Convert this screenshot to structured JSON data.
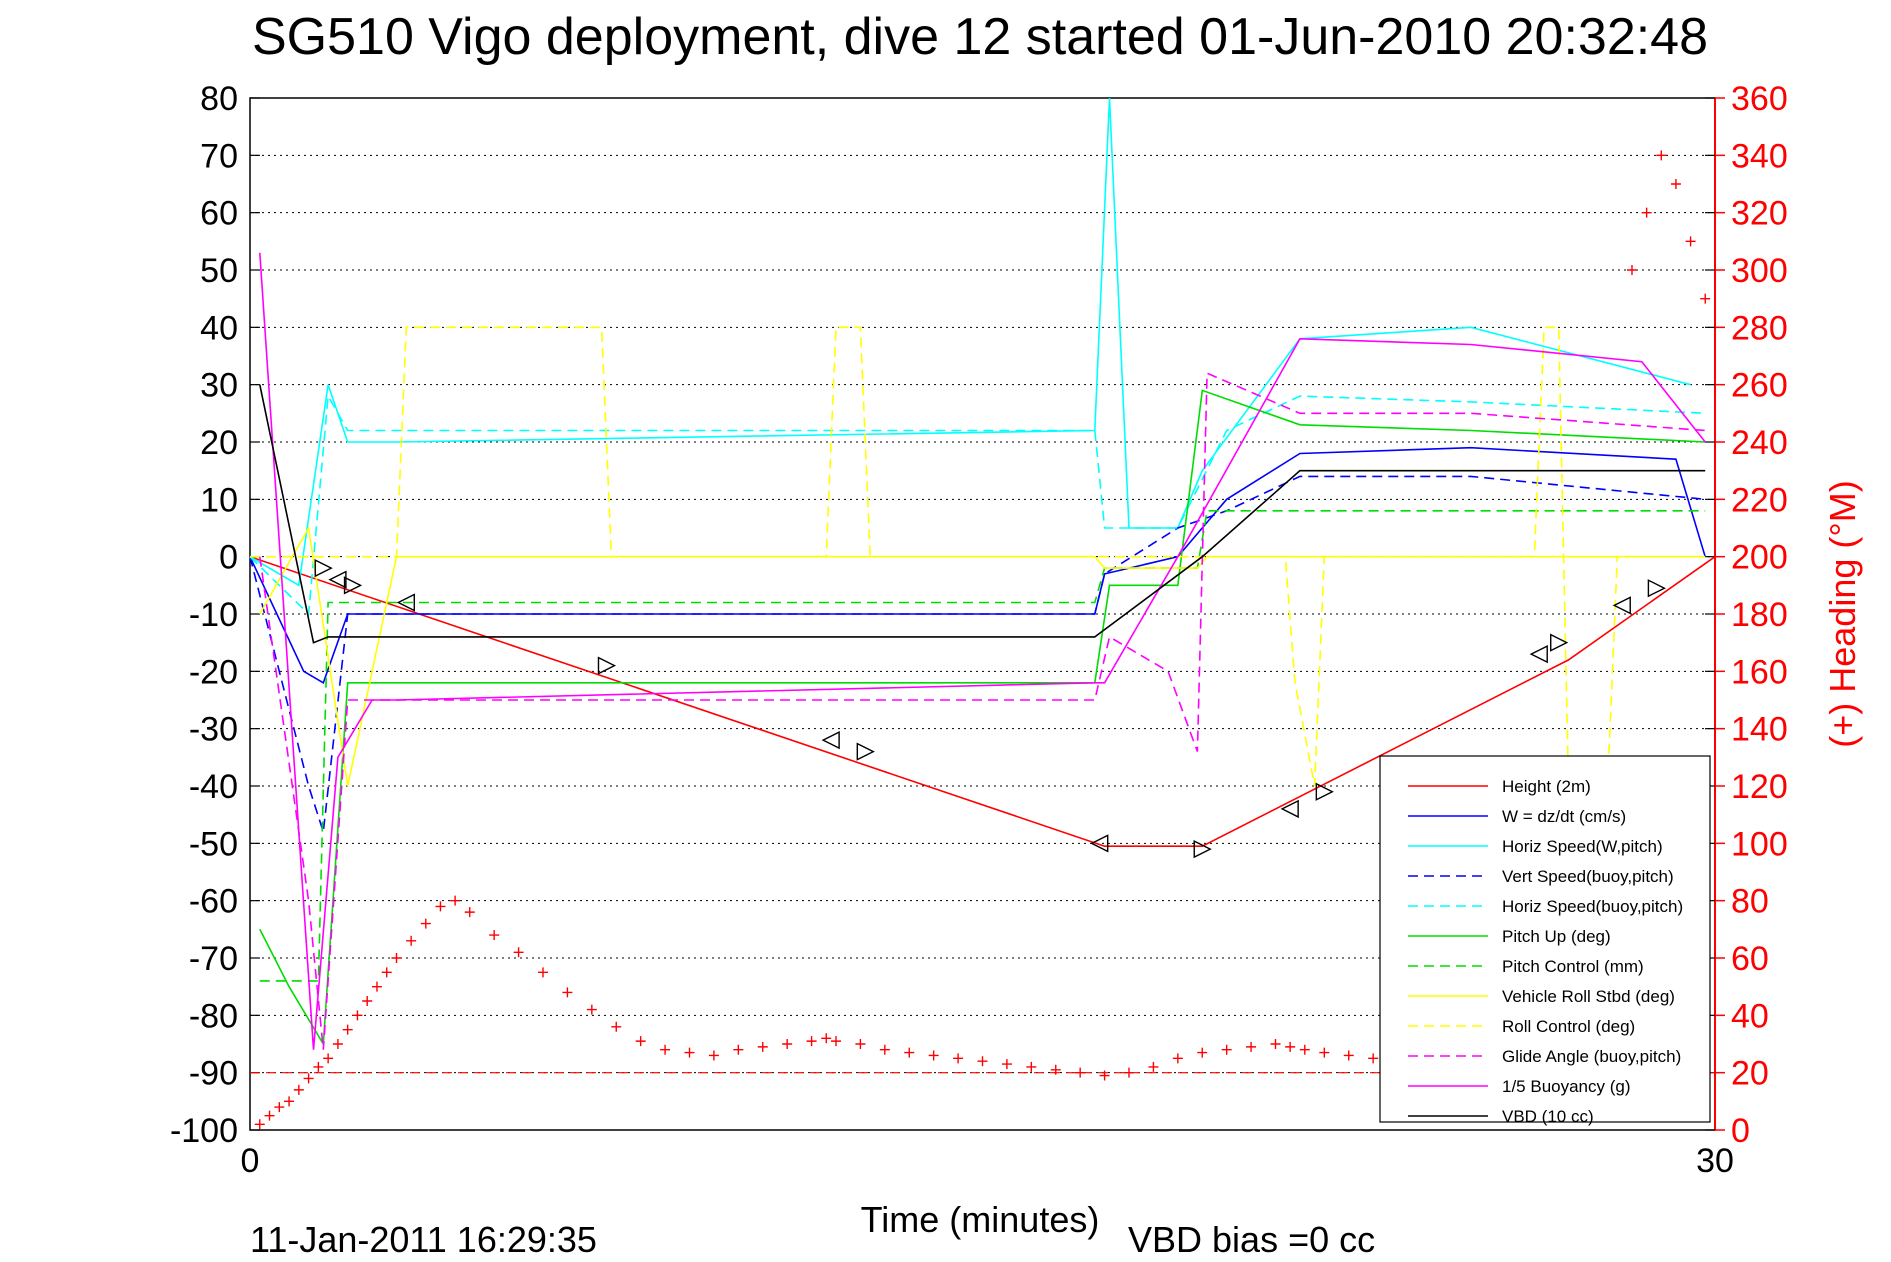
{
  "chart_data": {
    "type": "line",
    "title": "SG510 Vigo deployment, dive 12 started 01-Jun-2010 20:32:48",
    "xlabel": "Time (minutes)",
    "ylabel_right": "(+) Heading (°M)",
    "xlim": [
      0,
      30
    ],
    "ylim_left": [
      -100,
      80
    ],
    "ylim_right": [
      0,
      360
    ],
    "x_ticks": [
      "0",
      "30"
    ],
    "y_ticks_left": [
      "80",
      "70",
      "60",
      "50",
      "40",
      "30",
      "20",
      "10",
      "0",
      "-10",
      "-20",
      "-30",
      "-40",
      "-50",
      "-60",
      "-70",
      "-80",
      "-90",
      "-100"
    ],
    "y_ticks_right": [
      "360",
      "340",
      "320",
      "300",
      "280",
      "260",
      "240",
      "220",
      "200",
      "180",
      "160",
      "140",
      "120",
      "100",
      "80",
      "60",
      "40",
      "20",
      "0"
    ],
    "grid": "horizontal dotted",
    "legend_position": "bottom-right",
    "footer_date": "11-Jan-2011 16:29:35",
    "footer_vbd": "VBD bias =0 cc",
    "series": [
      {
        "name": "Height (2m)",
        "color": "#ff0000",
        "style": "solid",
        "x": [
          0,
          17.5,
          19.5,
          27,
          30
        ],
        "y": [
          0,
          -50.5,
          -50.5,
          -18,
          0
        ]
      },
      {
        "name": "W = dz/dt (cm/s)",
        "color": "#0000ff",
        "style": "solid",
        "x": [
          0,
          1.1,
          1.5,
          2,
          3,
          17.3,
          17.5,
          19,
          20,
          21.5,
          25,
          29.2,
          29.8
        ],
        "y": [
          0,
          -20,
          -22,
          -10,
          -10,
          -10,
          -3,
          0,
          10,
          18,
          19,
          17,
          0
        ]
      },
      {
        "name": "Horiz Speed(W,pitch)",
        "color": "#00ffff",
        "style": "solid",
        "x": [
          0,
          1,
          1.6,
          2,
          3,
          17.3,
          17.6,
          18,
          19,
          19.5,
          21.5,
          25,
          29.5
        ],
        "y": [
          0,
          -5,
          30,
          20,
          20,
          22,
          80,
          5,
          5,
          15,
          38,
          40,
          30
        ]
      },
      {
        "name": "Vert Speed(buoy,pitch)",
        "color": "#0000ff",
        "style": "dashed",
        "x": [
          0,
          1.2,
          1.5,
          2,
          3,
          17.3,
          17.5,
          19,
          20,
          21.5,
          25,
          29.8
        ],
        "y": [
          0,
          -40,
          -48,
          -10,
          -10,
          -10,
          -3,
          5,
          8,
          14,
          14,
          10
        ]
      },
      {
        "name": "Horiz Speed(buoy,pitch)",
        "color": "#00ffff",
        "style": "dashed",
        "x": [
          0,
          1.2,
          1.6,
          2,
          3,
          17.3,
          17.5,
          19,
          20,
          21.5,
          25,
          29.8
        ],
        "y": [
          0,
          -10,
          28,
          22,
          22,
          22,
          5,
          5,
          22,
          28,
          27,
          25
        ]
      },
      {
        "name": "Pitch Up (deg)",
        "color": "#00dd00",
        "style": "solid",
        "x": [
          0.2,
          0.8,
          1.5,
          2,
          3,
          17.3,
          17.6,
          19,
          19.5,
          21.5,
          25,
          29.8
        ],
        "y": [
          -65,
          -75,
          -85,
          -22,
          -22,
          -22,
          -5,
          -5,
          29,
          23,
          22,
          20
        ]
      },
      {
        "name": "Pitch Control (mm)",
        "color": "#00dd00",
        "style": "dashed",
        "x": [
          0.2,
          1.4,
          1.6,
          2,
          3,
          17.3,
          17.5,
          19.4,
          19.6,
          29.8
        ],
        "y": [
          -74,
          -74,
          -8,
          -8,
          -8,
          -8,
          -2,
          -2,
          8,
          8
        ]
      },
      {
        "name": "Vehicle Roll Stbd (deg)",
        "color": "#ffff00",
        "style": "solid",
        "x": [
          0.2,
          1.2,
          2,
          3,
          17.3,
          17.5,
          19.4,
          19.6,
          29.8
        ],
        "y": [
          -10,
          5,
          -40,
          0,
          0,
          -2,
          -2,
          0,
          0
        ]
      },
      {
        "name": "Roll Control (deg)",
        "color": "#ffff00",
        "style": "dashed",
        "x": [
          0,
          3,
          3.2,
          7.2,
          7.4,
          11.8,
          12,
          12.5,
          12.7,
          21.2,
          21.4,
          21.8,
          22,
          26.3,
          26.5,
          26.8,
          27,
          27.8,
          28,
          29.8
        ],
        "y": [
          0,
          0,
          40,
          40,
          0,
          0,
          40,
          40,
          0,
          0,
          -22,
          -40,
          0,
          0,
          40,
          40,
          -40,
          -40,
          0,
          0
        ]
      },
      {
        "name": "Glide Angle (buoy,pitch)",
        "color": "#ff00ff",
        "style": "dashed",
        "x": [
          0.2,
          1.2,
          1.5,
          2,
          3,
          17.3,
          17.6,
          18.8,
          19.4,
          19.6,
          21.5,
          25,
          29.8
        ],
        "y": [
          0,
          -60,
          -86,
          -25,
          -25,
          -25,
          -14,
          -20,
          -34,
          32,
          25,
          25,
          22
        ]
      },
      {
        "name": "1/5 Buoyancy (g)",
        "color": "#ff00ff",
        "style": "solid",
        "x": [
          0.2,
          1.3,
          1.8,
          2.5,
          3,
          17.3,
          17.5,
          19,
          21.5,
          25,
          28.5,
          29.8
        ],
        "y": [
          53,
          -86,
          -35,
          -25,
          -25,
          -22,
          -22,
          0,
          38,
          37,
          34,
          20
        ]
      },
      {
        "name": "VBD (10 cc)",
        "color": "#000000",
        "style": "solid",
        "x": [
          0.2,
          1.3,
          1.6,
          17.3,
          19.5,
          21.5,
          29.8
        ],
        "y": [
          30,
          -15,
          -14,
          -14,
          0,
          15,
          15
        ]
      }
    ],
    "heading": {
      "name": "(+) Heading",
      "color": "#ff0000",
      "marker": "+",
      "x": [
        0.2,
        0.4,
        0.6,
        0.8,
        1.0,
        1.2,
        1.4,
        1.6,
        1.8,
        2.0,
        2.2,
        2.4,
        2.6,
        2.8,
        3.0,
        3.3,
        3.6,
        3.9,
        4.2,
        4.5,
        5,
        5.5,
        6,
        6.5,
        7,
        7.5,
        8,
        8.5,
        9,
        9.5,
        10,
        10.5,
        11,
        11.5,
        11.8,
        12,
        12.5,
        13,
        13.5,
        14,
        14.5,
        15,
        15.5,
        16,
        16.5,
        17,
        17.5,
        18,
        18.5,
        19,
        19.5,
        20,
        20.5,
        21,
        21.3,
        21.6,
        22,
        22.5,
        23,
        23.5,
        24,
        24.5,
        25,
        25.5,
        26,
        26.5,
        27,
        27.5,
        28,
        28.3,
        28.6,
        28.9,
        29.2,
        29.5,
        29.8
      ],
      "y": [
        2,
        5,
        8,
        10,
        14,
        18,
        22,
        25,
        30,
        35,
        40,
        45,
        50,
        55,
        60,
        66,
        72,
        78,
        80,
        76,
        68,
        62,
        55,
        48,
        42,
        36,
        31,
        28,
        27,
        26,
        28,
        29,
        30,
        31,
        32,
        31,
        30,
        28,
        27,
        26,
        25,
        24,
        23,
        22,
        21,
        20,
        19,
        20,
        22,
        25,
        27,
        28,
        29,
        30,
        29,
        28,
        27,
        26,
        25,
        24,
        23,
        22,
        21,
        20,
        19,
        18,
        17,
        16,
        20,
        300,
        320,
        340,
        330,
        310,
        290
      ]
    },
    "triangles": [
      {
        "x": 1.5,
        "y": -2
      },
      {
        "x": 1.8,
        "y": -4
      },
      {
        "x": 2.1,
        "y": -5
      },
      {
        "x": 3.2,
        "y": -8
      },
      {
        "x": 7.3,
        "y": -19
      },
      {
        "x": 11.9,
        "y": -32
      },
      {
        "x": 12.6,
        "y": -34
      },
      {
        "x": 17.4,
        "y": -50
      },
      {
        "x": 19.5,
        "y": -51
      },
      {
        "x": 21.3,
        "y": -44
      },
      {
        "x": 22.0,
        "y": -41
      },
      {
        "x": 26.4,
        "y": -17
      },
      {
        "x": 26.8,
        "y": -15
      },
      {
        "x": 28.1,
        "y": -8.5
      },
      {
        "x": 28.8,
        "y": -5.5
      }
    ]
  }
}
